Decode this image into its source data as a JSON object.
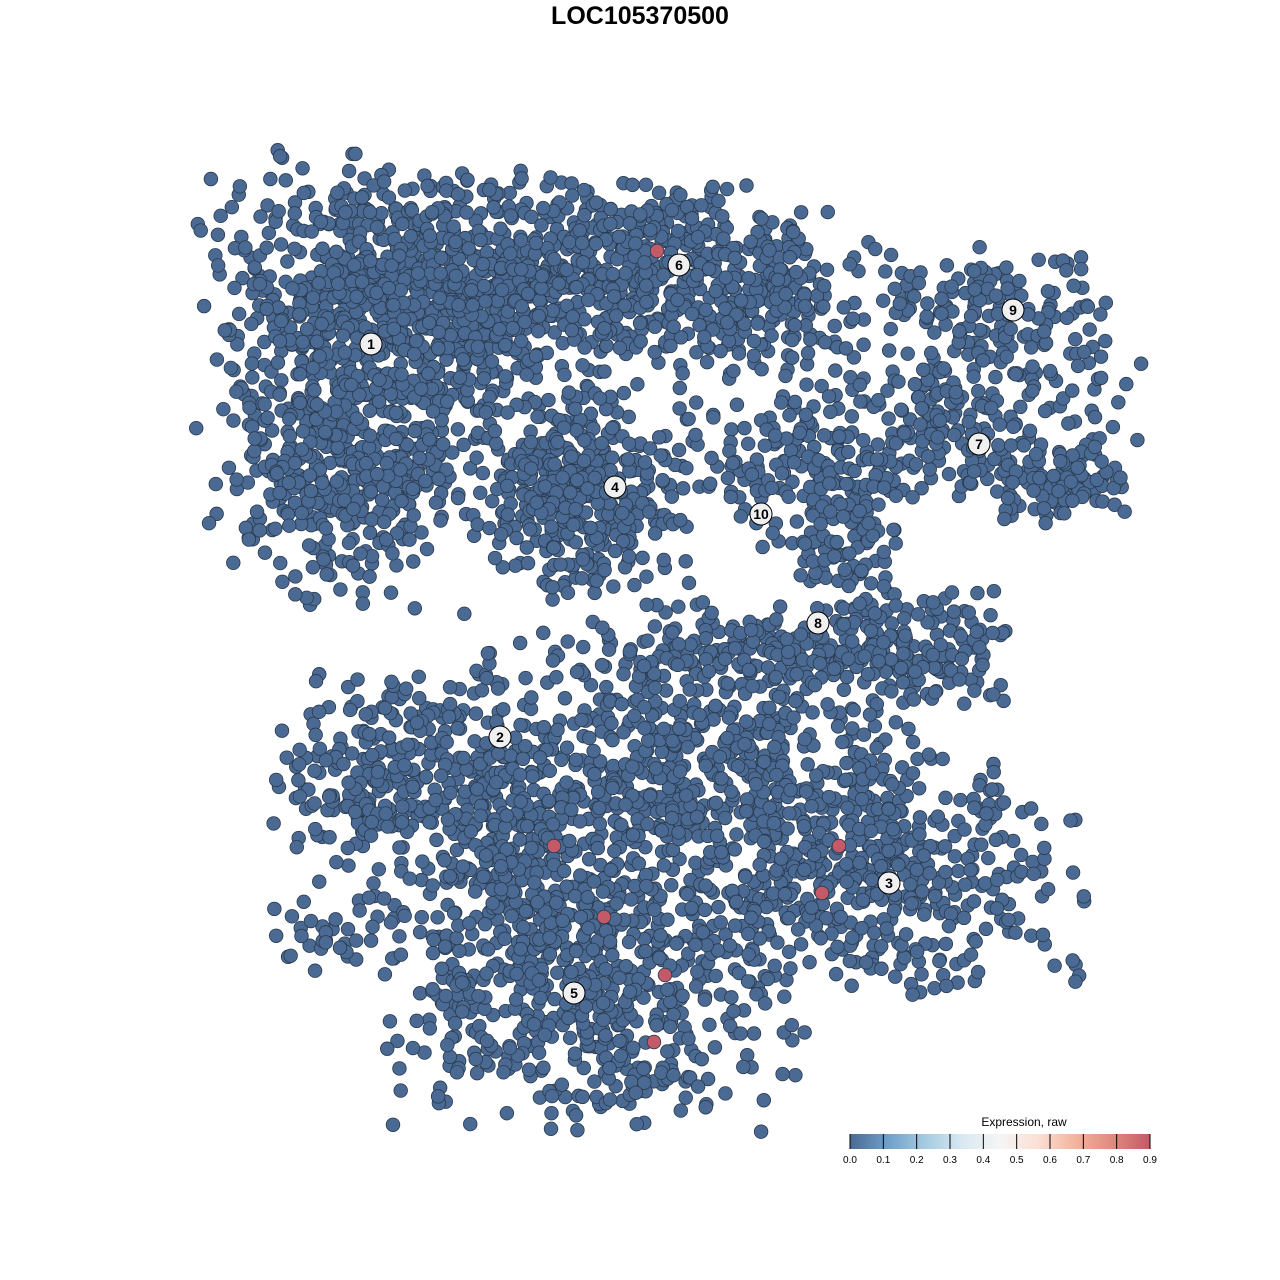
{
  "chart_data": {
    "type": "scatter",
    "title": "LOC105370500",
    "xlabel": "",
    "ylabel": "",
    "xlim": [
      -45,
      50
    ],
    "ylim": [
      -46,
      46
    ],
    "grid": false,
    "colors": {
      "low": "#4a6a93",
      "high": "#c45a67",
      "stroke": "#2a3a4e"
    },
    "clusters": [
      {
        "label": "1",
        "center": [
          -26.9,
          29.6
        ],
        "spread": [
          8,
          9
        ],
        "n": 700
      },
      {
        "label": "",
        "center": [
          -30,
          15
        ],
        "spread": [
          5,
          6
        ],
        "n": 250
      },
      {
        "label": "",
        "center": [
          -16,
          36
        ],
        "spread": [
          12,
          5
        ],
        "n": 600
      },
      {
        "label": "6",
        "center": [
          1,
          37
        ],
        "spread": [
          8,
          4
        ],
        "n": 320
      },
      {
        "label": "",
        "center": [
          14,
          34
        ],
        "spread": [
          5,
          4
        ],
        "n": 150
      },
      {
        "label": "4",
        "center": [
          -6,
          15
        ],
        "spread": [
          5,
          5
        ],
        "n": 420
      },
      {
        "label": "9",
        "center": [
          35,
          33
        ],
        "spread": [
          6,
          3
        ],
        "n": 150
      },
      {
        "label": "7",
        "center": [
          32,
          21
        ],
        "spread": [
          9,
          4
        ],
        "n": 260
      },
      {
        "label": "",
        "center": [
          42,
          16
        ],
        "spread": [
          4,
          2
        ],
        "n": 80
      },
      {
        "label": "10",
        "center": [
          12,
          17
        ],
        "spread": [
          4,
          4
        ],
        "n": 100
      },
      {
        "label": "",
        "center": [
          21,
          10
        ],
        "spread": [
          2.5,
          5
        ],
        "n": 120
      },
      {
        "label": "",
        "center": [
          28,
          -1
        ],
        "spread": [
          4.5,
          3
        ],
        "n": 150
      },
      {
        "label": "8",
        "center": [
          12,
          -0.5
        ],
        "spread": [
          6,
          2
        ],
        "n": 110
      },
      {
        "label": "2",
        "center": [
          -24,
          -14
        ],
        "spread": [
          6,
          5
        ],
        "n": 320
      },
      {
        "label": "",
        "center": [
          4,
          -14
        ],
        "spread": [
          11,
          8
        ],
        "n": 820
      },
      {
        "label": "3",
        "center": [
          25,
          -23
        ],
        "spread": [
          9,
          6
        ],
        "n": 400
      },
      {
        "label": "5",
        "center": [
          -4,
          -36
        ],
        "spread": [
          10,
          6
        ],
        "n": 520
      },
      {
        "label": "",
        "center": [
          -10,
          -24
        ],
        "spread": [
          5,
          6
        ],
        "n": 250
      },
      {
        "label": "",
        "center": [
          -30,
          -29
        ],
        "spread": [
          4,
          2
        ],
        "n": 40
      }
    ],
    "label_positions": [
      {
        "label": "1",
        "x": -26.9,
        "y": 29.6
      },
      {
        "label": "2",
        "x": -14.0,
        "y": -9.7
      },
      {
        "label": "3",
        "x": 24.9,
        "y": -24.3
      },
      {
        "label": "4",
        "x": -2.5,
        "y": 15.3
      },
      {
        "label": "5",
        "x": -6.6,
        "y": -35.3
      },
      {
        "label": "6",
        "x": 3.9,
        "y": 37.5
      },
      {
        "label": "7",
        "x": 33.9,
        "y": 19.6
      },
      {
        "label": "8",
        "x": 17.8,
        "y": 1.7
      },
      {
        "label": "9",
        "x": 37.3,
        "y": 33.0
      },
      {
        "label": "10",
        "x": 12.1,
        "y": 12.6
      }
    ],
    "expressed_points": [
      {
        "x": 1.7,
        "y": 38.9,
        "value": 0.9
      },
      {
        "x": -8.6,
        "y": -20.6,
        "value": 0.9
      },
      {
        "x": 19.9,
        "y": -20.6,
        "value": 0.9
      },
      {
        "x": 18.2,
        "y": -25.3,
        "value": 0.9
      },
      {
        "x": -3.6,
        "y": -27.7,
        "value": 0.9
      },
      {
        "x": 2.5,
        "y": -33.5,
        "value": 0.9
      },
      {
        "x": 1.4,
        "y": -40.2,
        "value": 0.9
      }
    ],
    "legend": {
      "title": "Expression, raw",
      "position": "bottom-right",
      "ticks": [
        "0.0",
        "0.1",
        "0.2",
        "0.3",
        "0.4",
        "0.5",
        "0.6",
        "0.7",
        "0.8",
        "0.9"
      ],
      "gradient": [
        "#4a6a93",
        "#6f9fc9",
        "#a4cbe0",
        "#d9e9f2",
        "#f5f5f5",
        "#fbe0d4",
        "#f3b49c",
        "#e08a7f",
        "#c45a67"
      ]
    }
  }
}
